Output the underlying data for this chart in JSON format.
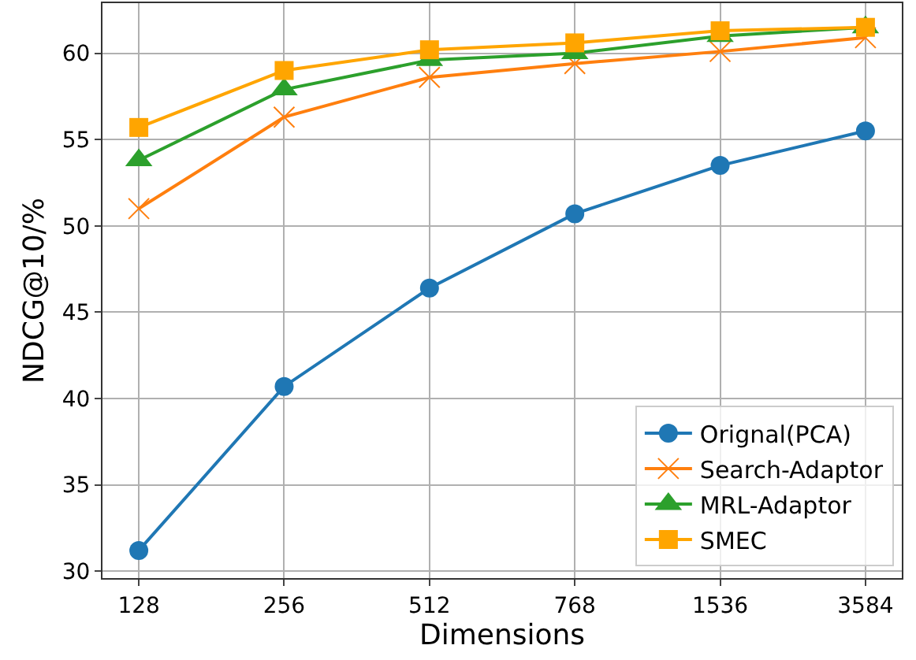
{
  "chart_data": {
    "type": "line",
    "xlabel": "Dimensions",
    "ylabel": "NDCG@10/%",
    "categories": [
      "128",
      "256",
      "512",
      "768",
      "1536",
      "3584"
    ],
    "series": [
      {
        "name": "Orignal(PCA)",
        "color": "#1f77b4",
        "marker": "circle",
        "values": [
          31.2,
          40.7,
          46.4,
          50.7,
          53.5,
          55.5
        ]
      },
      {
        "name": "Search-Adaptor",
        "color": "#ff7f0e",
        "marker": "cross",
        "values": [
          51.0,
          56.3,
          58.6,
          59.4,
          60.1,
          60.9
        ]
      },
      {
        "name": "MRL-Adaptor",
        "color": "#2ca02c",
        "marker": "triangle",
        "values": [
          53.8,
          57.9,
          59.6,
          60.0,
          61.0,
          61.5
        ]
      },
      {
        "name": "SMEC",
        "color": "#ffa500",
        "marker": "square",
        "values": [
          55.7,
          59.0,
          60.2,
          60.6,
          61.3,
          61.5
        ]
      }
    ],
    "ylim": [
      29.6,
      62.9
    ],
    "yticks": [
      30,
      35,
      40,
      45,
      50,
      55,
      60
    ],
    "grid": true,
    "legend": "bottom right"
  }
}
